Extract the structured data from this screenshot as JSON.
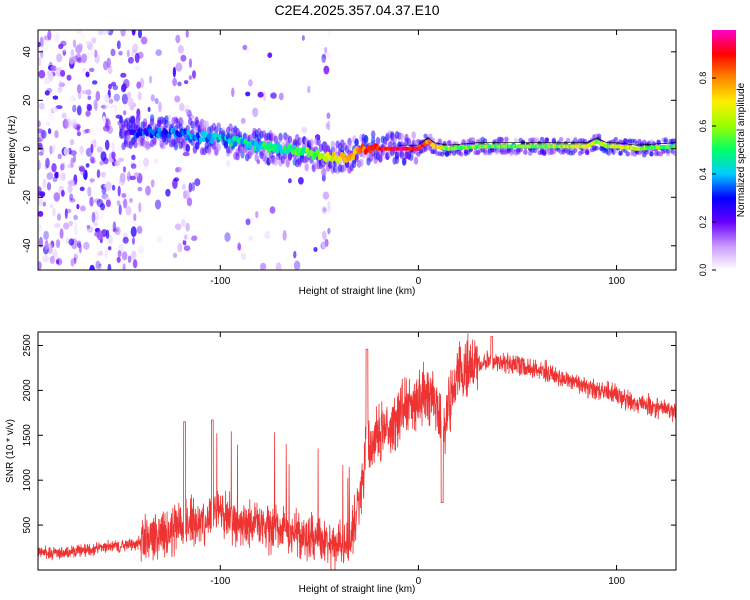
{
  "title": "C2E4.2025.357.04.37.E10",
  "chart_data": [
    {
      "type": "heatmap",
      "title": "C2E4.2025.357.04.37.E10",
      "xlabel": "Height of straight line (km)",
      "ylabel": "Frequency (Hz)",
      "xlim": [
        -192,
        130
      ],
      "ylim": [
        -50,
        49
      ],
      "xticks": [
        -100,
        0,
        100
      ],
      "xtick_labels": [
        "-100",
        "0",
        "100"
      ],
      "yticks": [
        -40,
        -20,
        0,
        20,
        40
      ],
      "ytick_labels": [
        "-40",
        "-20",
        "0",
        "20",
        "40"
      ],
      "colorbar": {
        "label": "Normalized spectral amplitude",
        "range": [
          0,
          1
        ],
        "ticks": [
          0.0,
          0.2,
          0.4,
          0.6,
          0.8
        ],
        "tick_labels": [
          "0.0",
          "0.2",
          "0.4",
          "0.6",
          "0.8"
        ],
        "stops": [
          "#ffffff",
          "#cc99ff",
          "#6600ff",
          "#0000ff",
          "#00ccff",
          "#00ff66",
          "#99ff00",
          "#ffee00",
          "#ff8800",
          "#ff0000",
          "#ff00cc"
        ]
      },
      "ridge": {
        "x": [
          -192,
          -140,
          -120,
          -100,
          -80,
          -60,
          -50,
          -40,
          -35,
          -30,
          -25,
          -20,
          -10,
          0,
          3,
          5,
          8,
          15,
          30,
          50,
          70,
          85,
          90,
          95,
          100,
          110,
          130
        ],
        "y": [
          7,
          7,
          6,
          4,
          1,
          -1,
          -3,
          -4,
          -3,
          -1,
          0,
          0,
          0,
          0,
          2,
          3,
          1,
          0,
          1,
          1,
          1,
          1,
          3,
          1,
          1,
          0,
          1
        ],
        "amplitude": [
          0.15,
          0.3,
          0.35,
          0.4,
          0.45,
          0.5,
          0.6,
          0.7,
          0.75,
          0.8,
          0.85,
          0.9,
          0.95,
          0.9,
          0.85,
          0.8,
          0.75,
          0.6,
          0.55,
          0.55,
          0.6,
          0.65,
          0.6,
          0.6,
          0.7,
          0.6,
          0.5
        ]
      },
      "noise_region_x": [
        -192,
        -140
      ]
    },
    {
      "type": "line",
      "xlabel": "Height of straight line (km)",
      "ylabel": "SNR (10 * v/v)",
      "xlim": [
        -192,
        130
      ],
      "ylim": [
        0,
        2650
      ],
      "xticks": [
        -100,
        0,
        100
      ],
      "xtick_labels": [
        "-100",
        "0",
        "100"
      ],
      "yticks": [
        500,
        1000,
        1500,
        2000,
        2500
      ],
      "ytick_labels": [
        "500",
        "1000",
        "1500",
        "2000",
        "2500"
      ],
      "series": [
        {
          "name": "SNR",
          "color": "#ee3333",
          "x": [
            -192,
            -180,
            -170,
            -160,
            -150,
            -140,
            -130,
            -120,
            -110,
            -100,
            -90,
            -80,
            -70,
            -60,
            -50,
            -45,
            -40,
            -35,
            -30,
            -27,
            -24,
            -20,
            -15,
            -10,
            -5,
            0,
            5,
            10,
            13,
            16,
            20,
            25,
            30,
            35,
            40,
            45,
            50,
            55,
            60,
            65,
            70,
            75,
            80,
            85,
            90,
            95,
            100,
            105,
            110,
            115,
            120,
            125,
            130
          ],
          "y": [
            200,
            180,
            220,
            250,
            270,
            300,
            400,
            500,
            550,
            600,
            550,
            500,
            450,
            400,
            350,
            300,
            280,
            300,
            700,
            1200,
            1400,
            1500,
            1600,
            1700,
            1800,
            1900,
            2000,
            1800,
            1500,
            1900,
            2150,
            2250,
            2300,
            2350,
            2330,
            2300,
            2280,
            2250,
            2250,
            2200,
            2150,
            2120,
            2100,
            2050,
            2000,
            2000,
            1950,
            1900,
            1850,
            1850,
            1800,
            1780,
            1750
          ],
          "spikes": [
            {
              "x": -118,
              "y": 1650
            },
            {
              "x": -104,
              "y": 1670
            },
            {
              "x": -26,
              "y": 2460
            },
            {
              "x": 12,
              "y": 750
            },
            {
              "x": 37,
              "y": 2600
            }
          ]
        }
      ]
    }
  ]
}
